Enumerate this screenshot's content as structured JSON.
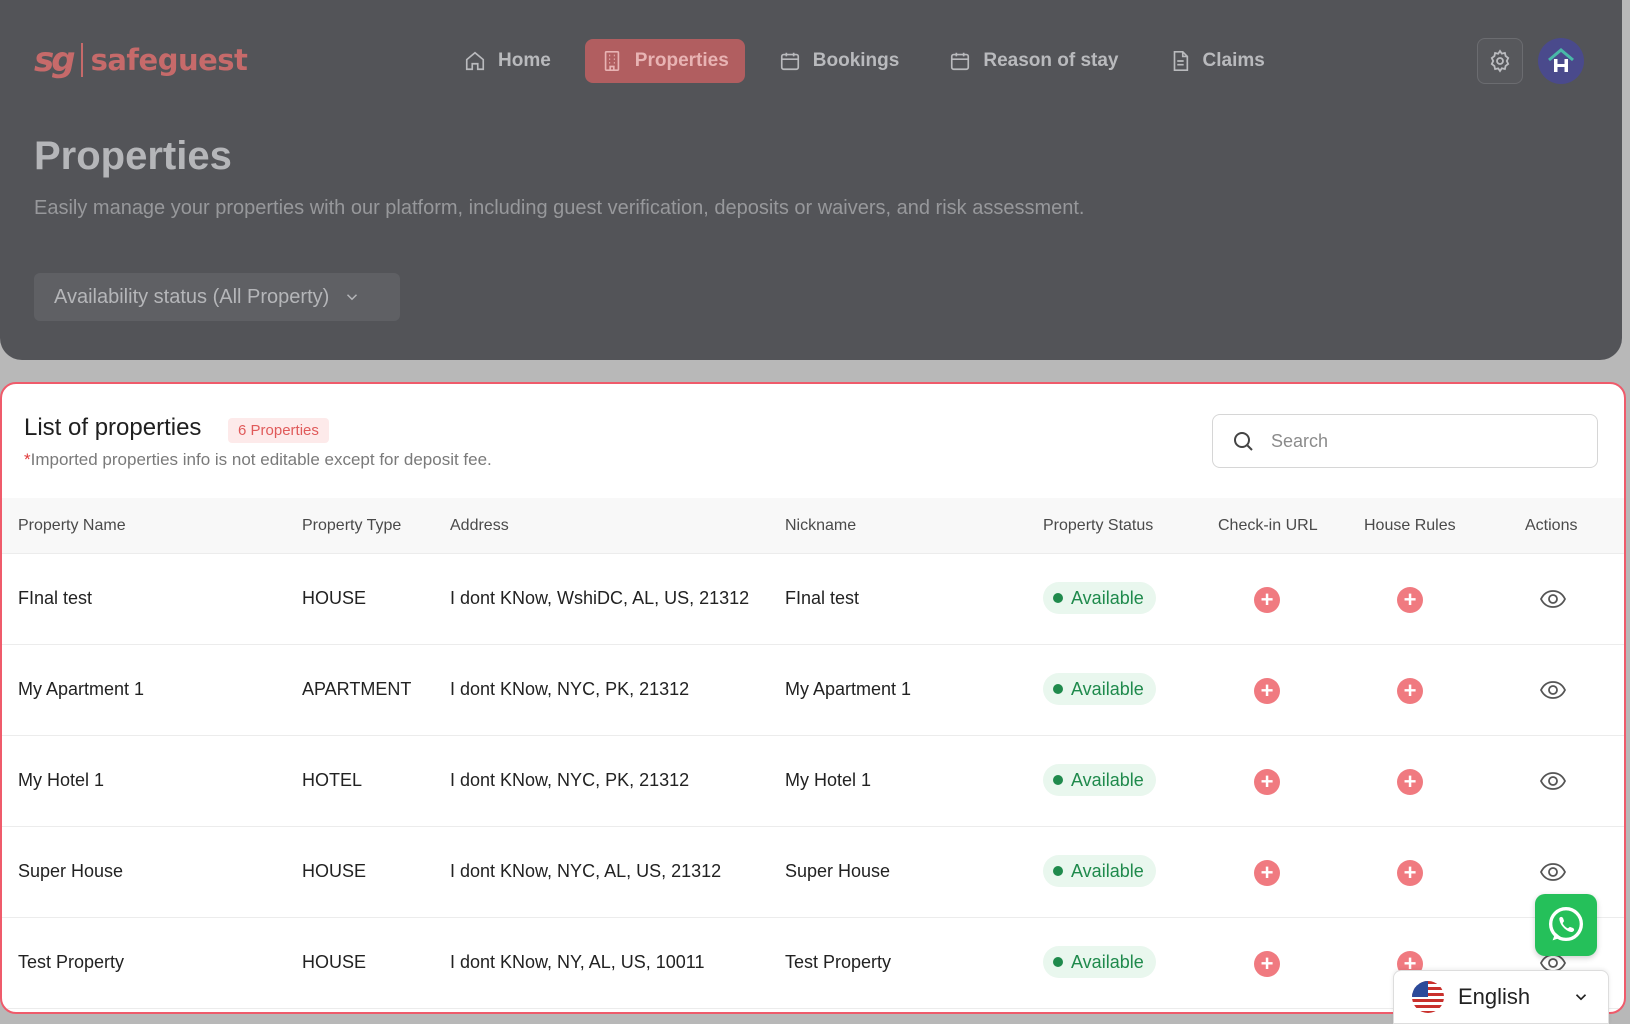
{
  "header": {
    "logo_mark": "sg",
    "logo_text": "safeguest",
    "nav": [
      {
        "label": "Home",
        "icon": "home-icon",
        "active": false
      },
      {
        "label": "Properties",
        "icon": "building-icon",
        "active": true
      },
      {
        "label": "Bookings",
        "icon": "calendar-icon",
        "active": false
      },
      {
        "label": "Reason of stay",
        "icon": "calendar-icon",
        "active": false
      },
      {
        "label": "Claims",
        "icon": "document-icon",
        "active": false
      }
    ],
    "avatar_letter": "H",
    "page_title": "Properties",
    "page_subtitle": "Easily manage your properties with our platform, including guest verification, deposits or waivers, and risk assessment.",
    "status_filter": "Availability status (All Property)"
  },
  "list": {
    "title": "List of properties",
    "count_badge": "6 Properties",
    "note_star": "*",
    "note": "Imported properties info is not editable except for deposit fee.",
    "search_placeholder": "Search",
    "columns": [
      "Property Name",
      "Property Type",
      "Address",
      "Nickname",
      "Property Status",
      "Check-in URL",
      "House Rules",
      "Actions"
    ],
    "rows": [
      {
        "name": "FInal test",
        "type": "HOUSE",
        "address": "I dont KNow, WshiDC, AL, US, 21312",
        "nickname": "FInal test",
        "status": "Available"
      },
      {
        "name": "My Apartment 1",
        "type": "APARTMENT",
        "address": "I dont KNow, NYC, PK, 21312",
        "nickname": "My Apartment 1",
        "status": "Available"
      },
      {
        "name": "My Hotel 1",
        "type": "HOTEL",
        "address": "I dont KNow, NYC, PK, 21312",
        "nickname": "My Hotel 1",
        "status": "Available"
      },
      {
        "name": "Super House",
        "type": "HOUSE",
        "address": "I dont KNow, NYC, AL, US, 21312",
        "nickname": "Super House",
        "status": "Available"
      },
      {
        "name": "Test Property",
        "type": "HOUSE",
        "address": "I dont KNow, NY, AL, US, 10011",
        "nickname": "Test Property",
        "status": "Available"
      }
    ]
  },
  "language": {
    "label": "English"
  },
  "colors": {
    "brand": "#c66a6a",
    "accent": "#ef5b6b",
    "available": "#1f8a4c",
    "whatsapp": "#25c05a"
  }
}
